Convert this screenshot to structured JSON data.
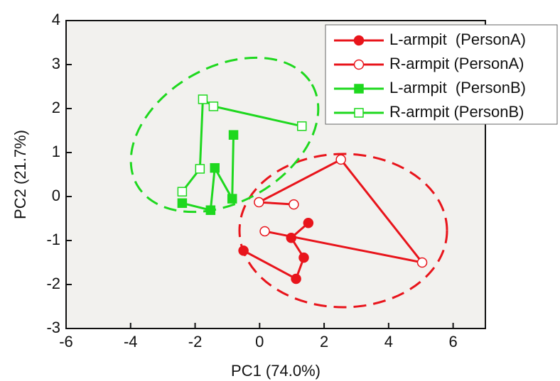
{
  "chart_data": {
    "type": "scatter",
    "xlabel": "PC1 (74.0%)",
    "ylabel": "PC2 (21.7%)",
    "xlim": [
      -6,
      7
    ],
    "ylim": [
      -3,
      4
    ],
    "xticks": [
      -6,
      -4,
      -2,
      0,
      2,
      4,
      6
    ],
    "yticks": [
      -3,
      -2,
      -1,
      0,
      1,
      2,
      3,
      4
    ],
    "legend": "top-right",
    "series": [
      {
        "name": "L-armpit  (PersonA)",
        "color": "#e8141b",
        "marker": "circle",
        "filled": true,
        "x": [
          1.51,
          0.98,
          1.37,
          1.13,
          -0.5
        ],
        "values": [
          -0.6,
          -0.94,
          -1.39,
          -1.87,
          -1.23
        ]
      },
      {
        "name": "R-armpit (PersonA)",
        "color": "#e8141b",
        "marker": "circle",
        "filled": false,
        "x": [
          1.06,
          -0.02,
          2.52,
          5.04,
          0.16
        ],
        "values": [
          -0.18,
          -0.13,
          0.84,
          -1.5,
          -0.79
        ]
      },
      {
        "name": "L-armpit  (PersonB)",
        "color": "#1ed81e",
        "marker": "square",
        "filled": true,
        "x": [
          -0.81,
          -0.85,
          -1.39,
          -1.52,
          -2.4
        ],
        "values": [
          1.4,
          -0.05,
          0.65,
          -0.31,
          -0.15
        ]
      },
      {
        "name": "R-armpit (PersonB)",
        "color": "#1ed81e",
        "marker": "square",
        "filled": false,
        "x": [
          1.31,
          -1.43,
          -1.76,
          -1.85,
          -2.4
        ],
        "values": [
          1.6,
          2.05,
          2.21,
          0.63,
          0.11
        ]
      }
    ]
  }
}
